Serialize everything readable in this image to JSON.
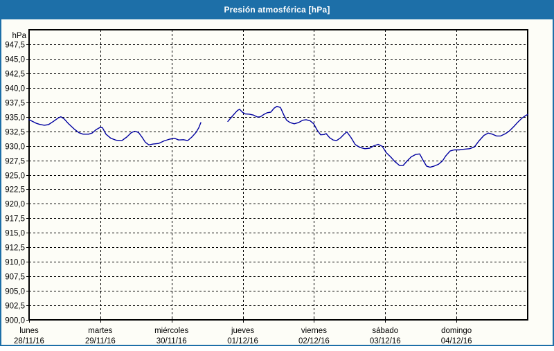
{
  "window": {
    "title": "Presión atmosférica [hPa]"
  },
  "colors": {
    "frame_blue": "#1d6fa8",
    "title_text": "#ffffff",
    "plot_border": "#000000",
    "grid": "#000000",
    "axis_text": "#000000",
    "series_line": "#0000a0",
    "background": "#fdfdf7"
  },
  "chart_data": {
    "type": "line",
    "title": "Presión atmosférica [hPa]",
    "y_unit_label": "hPa",
    "grid": "dashed",
    "y_axis": {
      "min": 900,
      "max": 950,
      "tick_step": 2.5,
      "ticks": [
        {
          "v": 947.5,
          "label": "947,5"
        },
        {
          "v": 945.0,
          "label": "945,0"
        },
        {
          "v": 942.5,
          "label": "942,5"
        },
        {
          "v": 940.0,
          "label": "940,0"
        },
        {
          "v": 937.5,
          "label": "937,5"
        },
        {
          "v": 935.0,
          "label": "935,0"
        },
        {
          "v": 932.5,
          "label": "932,5"
        },
        {
          "v": 930.0,
          "label": "930,0"
        },
        {
          "v": 927.5,
          "label": "927,5"
        },
        {
          "v": 925.0,
          "label": "925,0"
        },
        {
          "v": 922.5,
          "label": "922,5"
        },
        {
          "v": 920.0,
          "label": "920,0"
        },
        {
          "v": 917.5,
          "label": "917,5"
        },
        {
          "v": 915.0,
          "label": "915,0"
        },
        {
          "v": 912.5,
          "label": "912,5"
        },
        {
          "v": 910.0,
          "label": "910,0"
        },
        {
          "v": 907.5,
          "label": "907,5"
        },
        {
          "v": 905.0,
          "label": "905,0"
        },
        {
          "v": 902.5,
          "label": "902,5"
        },
        {
          "v": 900.0,
          "label": "900,0"
        }
      ]
    },
    "x_axis": {
      "min_days": 0,
      "max_days": 7,
      "day_ticks": [
        {
          "t": 0,
          "day": "lunes",
          "date": "28/11/16"
        },
        {
          "t": 1,
          "day": "martes",
          "date": "29/11/16"
        },
        {
          "t": 2,
          "day": "miércoles",
          "date": "30/11/16"
        },
        {
          "t": 3,
          "day": "jueves",
          "date": "01/12/16"
        },
        {
          "t": 4,
          "day": "viernes",
          "date": "02/12/16"
        },
        {
          "t": 5,
          "day": "sábado",
          "date": "03/12/16"
        },
        {
          "t": 6,
          "day": "domingo",
          "date": "04/12/16"
        }
      ]
    },
    "series": [
      {
        "name": "Presión atmosférica",
        "color": "#0000a0",
        "unit": "hPa",
        "segments": [
          [
            [
              0.0,
              934.5
            ],
            [
              0.049,
              934.2
            ],
            [
              0.097,
              933.9
            ],
            [
              0.146,
              933.7
            ],
            [
              0.214,
              933.55
            ],
            [
              0.272,
              933.65
            ],
            [
              0.34,
              934.2
            ],
            [
              0.408,
              934.8
            ],
            [
              0.447,
              935.0
            ],
            [
              0.496,
              934.6
            ],
            [
              0.554,
              933.8
            ],
            [
              0.632,
              932.9
            ],
            [
              0.7,
              932.25
            ],
            [
              0.758,
              932.0
            ],
            [
              0.836,
              932.0
            ],
            [
              0.885,
              932.2
            ],
            [
              0.943,
              932.8
            ],
            [
              1.001,
              933.2
            ],
            [
              1.031,
              933.1
            ],
            [
              1.079,
              932.0
            ],
            [
              1.147,
              931.3
            ],
            [
              1.225,
              930.95
            ],
            [
              1.303,
              930.9
            ],
            [
              1.371,
              931.5
            ],
            [
              1.439,
              932.3
            ],
            [
              1.487,
              932.5
            ],
            [
              1.536,
              932.3
            ],
            [
              1.585,
              931.5
            ],
            [
              1.633,
              930.6
            ],
            [
              1.682,
              930.15
            ],
            [
              1.74,
              930.3
            ],
            [
              1.818,
              930.4
            ],
            [
              1.896,
              930.85
            ],
            [
              1.974,
              931.15
            ],
            [
              2.042,
              931.3
            ],
            [
              2.1,
              931.0
            ],
            [
              2.168,
              931.05
            ],
            [
              2.226,
              930.9
            ],
            [
              2.285,
              931.5
            ],
            [
              2.343,
              932.3
            ],
            [
              2.382,
              933.1
            ],
            [
              2.411,
              934.0
            ]
          ],
          [
            [
              2.79,
              934.2
            ],
            [
              2.839,
              934.9
            ],
            [
              2.888,
              935.6
            ],
            [
              2.926,
              936.1
            ],
            [
              2.956,
              936.3
            ],
            [
              2.994,
              935.8
            ],
            [
              3.033,
              935.5
            ],
            [
              3.092,
              935.45
            ],
            [
              3.15,
              935.3
            ],
            [
              3.208,
              934.95
            ],
            [
              3.247,
              935.0
            ],
            [
              3.296,
              935.4
            ],
            [
              3.344,
              935.7
            ],
            [
              3.393,
              935.8
            ],
            [
              3.442,
              936.5
            ],
            [
              3.48,
              936.8
            ],
            [
              3.529,
              936.6
            ],
            [
              3.577,
              935.3
            ],
            [
              3.616,
              934.4
            ],
            [
              3.665,
              934.0
            ],
            [
              3.723,
              933.8
            ],
            [
              3.782,
              934.0
            ],
            [
              3.84,
              934.4
            ],
            [
              3.889,
              934.5
            ],
            [
              3.947,
              934.3
            ],
            [
              3.996,
              933.8
            ],
            [
              4.044,
              932.7
            ],
            [
              4.093,
              931.9
            ],
            [
              4.141,
              931.95
            ],
            [
              4.171,
              932.1
            ],
            [
              4.219,
              931.4
            ],
            [
              4.268,
              931.0
            ],
            [
              4.317,
              930.9
            ],
            [
              4.375,
              931.4
            ],
            [
              4.424,
              932.0
            ],
            [
              4.462,
              932.4
            ],
            [
              4.521,
              931.4
            ],
            [
              4.579,
              930.2
            ],
            [
              4.647,
              929.7
            ],
            [
              4.715,
              929.5
            ],
            [
              4.783,
              929.6
            ],
            [
              4.841,
              930.0
            ],
            [
              4.9,
              930.25
            ],
            [
              4.958,
              929.9
            ],
            [
              5.017,
              928.8
            ],
            [
              5.075,
              928.1
            ],
            [
              5.133,
              927.3
            ],
            [
              5.201,
              926.6
            ],
            [
              5.25,
              926.6
            ],
            [
              5.308,
              927.4
            ],
            [
              5.366,
              928.1
            ],
            [
              5.425,
              928.5
            ],
            [
              5.483,
              928.6
            ],
            [
              5.532,
              927.5
            ],
            [
              5.58,
              926.5
            ],
            [
              5.629,
              926.3
            ],
            [
              5.687,
              926.5
            ],
            [
              5.746,
              926.8
            ],
            [
              5.804,
              927.4
            ],
            [
              5.853,
              928.3
            ],
            [
              5.911,
              929.1
            ],
            [
              5.969,
              929.3
            ],
            [
              6.037,
              929.3
            ],
            [
              6.105,
              929.4
            ],
            [
              6.183,
              929.5
            ],
            [
              6.251,
              929.8
            ],
            [
              6.319,
              930.9
            ],
            [
              6.387,
              931.8
            ],
            [
              6.446,
              932.2
            ],
            [
              6.504,
              932.0
            ],
            [
              6.562,
              931.7
            ],
            [
              6.621,
              931.7
            ],
            [
              6.689,
              932.1
            ],
            [
              6.747,
              932.6
            ],
            [
              6.805,
              933.3
            ],
            [
              6.864,
              934.1
            ],
            [
              6.922,
              934.8
            ],
            [
              6.971,
              935.2
            ],
            [
              7.0,
              935.4
            ]
          ]
        ]
      }
    ]
  }
}
